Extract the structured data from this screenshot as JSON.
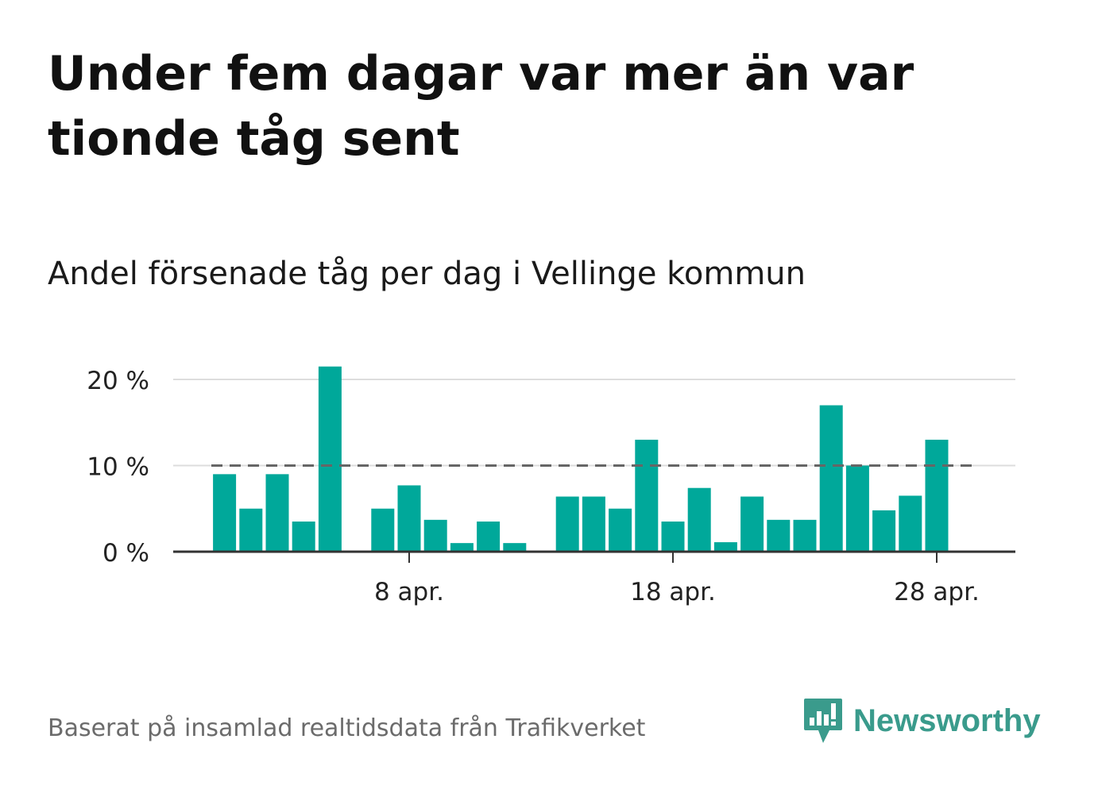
{
  "title": "Under fem dagar var mer än var tionde tåg sent",
  "subtitle": "Andel försenade tåg per dag i Vellinge kommun",
  "source": "Baserat på insamlad realtidsdata från Trafikverket",
  "logo": {
    "text": "Newsworthy",
    "color": "#3a9b8c"
  },
  "colors": {
    "bar": "#00a89a",
    "grid": "#dddddd",
    "reference": "#666666",
    "axis": "#333333"
  },
  "chart_data": {
    "type": "bar",
    "x_unit": "day of April",
    "x": [
      1,
      2,
      3,
      4,
      5,
      6,
      7,
      8,
      9,
      10,
      11,
      12,
      13,
      14,
      15,
      16,
      17,
      18,
      19,
      20,
      21,
      22,
      23,
      24,
      25,
      26,
      27,
      28,
      29
    ],
    "values": [
      9.0,
      5.0,
      9.0,
      3.5,
      21.5,
      0,
      5.0,
      7.7,
      3.7,
      1.0,
      3.5,
      1.0,
      0,
      6.4,
      6.4,
      5.0,
      13.0,
      3.5,
      7.4,
      1.1,
      6.4,
      3.7,
      3.7,
      17.0,
      10.0,
      4.8,
      6.5,
      13.0,
      0
    ],
    "ylim": [
      0,
      21.5
    ],
    "yticks": [
      {
        "value": 0,
        "label": "0 %"
      },
      {
        "value": 10,
        "label": "10 %"
      },
      {
        "value": 20,
        "label": "20 %"
      }
    ],
    "xticks": [
      {
        "x": 8,
        "label": "8 apr."
      },
      {
        "x": 18,
        "label": "18 apr."
      },
      {
        "x": 28,
        "label": "28 apr."
      }
    ],
    "reference_line": 10,
    "grid": true
  }
}
